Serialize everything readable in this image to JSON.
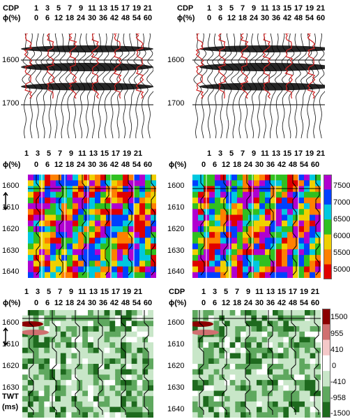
{
  "header": {
    "cdp_label": "CDP",
    "phi_label": "ϕ(%)",
    "cdp_values": [
      "1",
      "3",
      "5",
      "7",
      "9",
      "11",
      "13",
      "15",
      "17",
      "19",
      "21"
    ],
    "phi_values": [
      "0",
      "6",
      "12",
      "18",
      "24",
      "30",
      "36",
      "42",
      "48",
      "54",
      "60"
    ]
  },
  "seismic_rows": {
    "time_ticks": [
      "1600",
      "1700"
    ]
  },
  "velocity_rows": {
    "time_ticks": [
      "1600",
      "1610",
      "1620",
      "1630",
      "1640"
    ],
    "colorbar": {
      "labels": [
        "7500",
        "7000",
        "6500",
        "6000",
        "5500",
        "5000"
      ],
      "colors": [
        "#b000d0",
        "#0040ff",
        "#00c8e0",
        "#30c020",
        "#f0d000",
        "#ff8000",
        "#e00000"
      ]
    }
  },
  "difference_rows": {
    "time_ticks": [
      "1600",
      "1610",
      "1620",
      "1630",
      "1640"
    ],
    "axis_unit_label": "TWT",
    "axis_unit_sub": "(ms)",
    "colorbar": {
      "labels": [
        "1500",
        "955",
        "410",
        "0",
        "-410",
        "-958",
        "-1500"
      ],
      "colors": [
        "#8b0000",
        "#d07070",
        "#f4c8c8",
        "#ffffff",
        "#c8e6c8",
        "#5fa85f",
        "#1e6a1e"
      ]
    }
  }
}
